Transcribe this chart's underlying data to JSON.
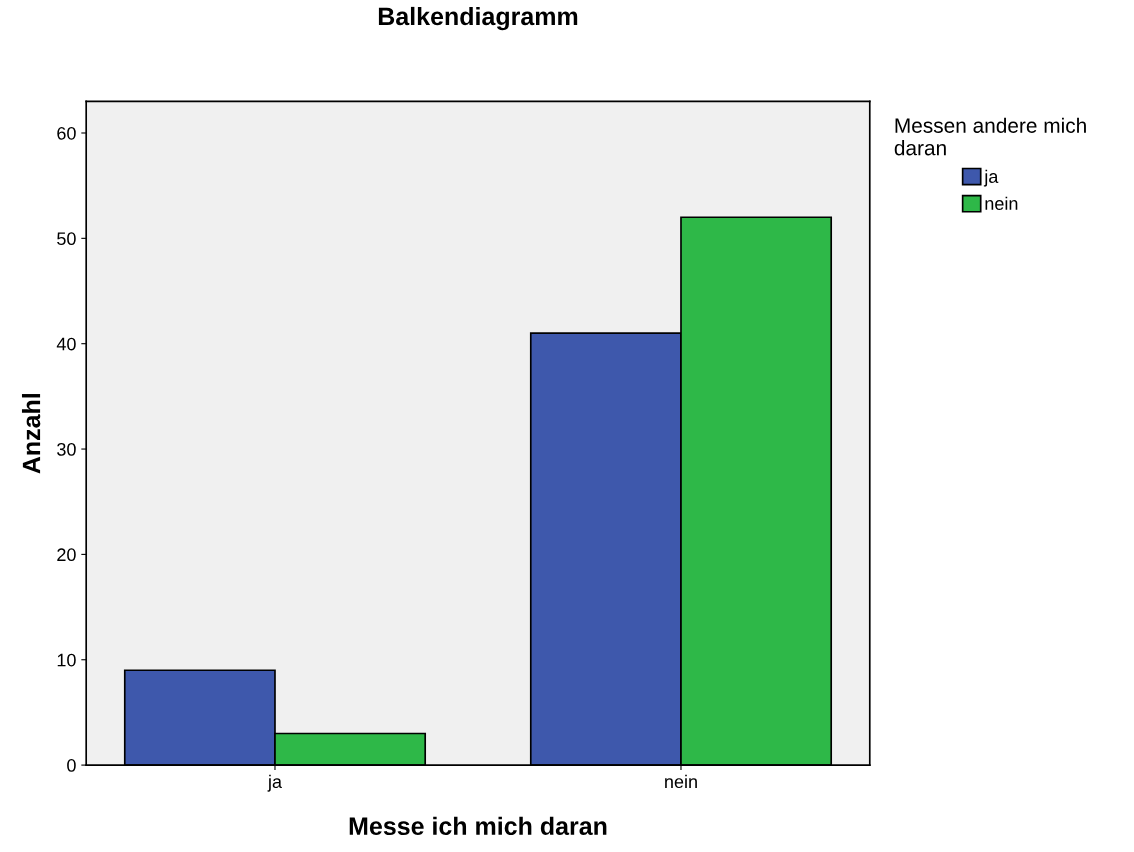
{
  "chart_data": {
    "type": "bar",
    "title": "Balkendiagramm",
    "xlabel": "Messe ich mich daran",
    "ylabel": "Anzahl",
    "legend_title": "Messen andere mich\ndaran",
    "categories": [
      "ja",
      "nein"
    ],
    "series": [
      {
        "name": "ja",
        "color": "#3e58ac",
        "values": [
          9,
          41
        ]
      },
      {
        "name": "nein",
        "color": "#2eb848",
        "values": [
          3,
          52
        ]
      }
    ],
    "ylim": [
      0,
      63
    ],
    "yticks": [
      0,
      10,
      20,
      30,
      40,
      50,
      60
    ],
    "grid": false,
    "legend": "top right"
  }
}
